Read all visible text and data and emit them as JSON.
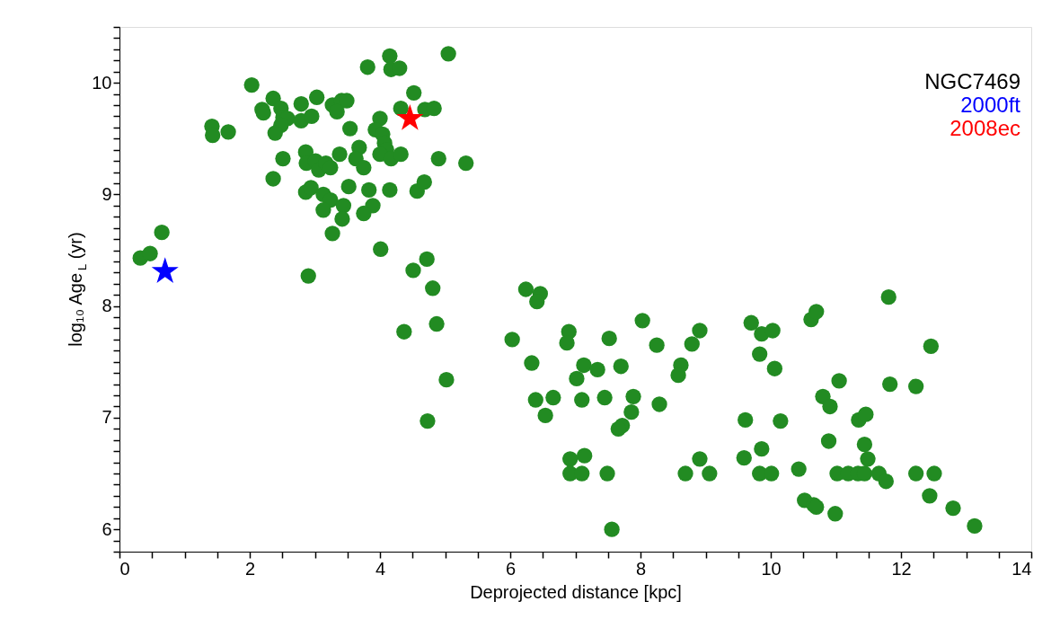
{
  "chart_data": {
    "type": "scatter",
    "xlabel": "Deprojected distance [kpc]",
    "ylabel": "log₁₀ Age$_{L}$ (yr)",
    "annotations": [
      "NGC7469"
    ],
    "xlim": [
      0,
      14
    ],
    "ylim": [
      5.8,
      10.5
    ],
    "xticks": [
      0,
      {
        "value": 0.5,
        "label": null
      },
      {
        "value": 1,
        "label": null
      },
      {
        "value": 1.5,
        "label": null
      },
      2,
      {
        "value": 2.5,
        "label": null
      },
      {
        "value": 3,
        "label": null
      },
      {
        "value": 3.5,
        "label": null
      },
      4,
      {
        "value": 4.5,
        "label": null
      },
      {
        "value": 5,
        "label": null
      },
      {
        "value": 5.5,
        "label": null
      },
      6,
      {
        "value": 6.5,
        "label": null
      },
      {
        "value": 7,
        "label": null
      },
      {
        "value": 7.5,
        "label": null
      },
      8,
      {
        "value": 8.5,
        "label": null
      },
      {
        "value": 9,
        "label": null
      },
      {
        "value": 9.5,
        "label": null
      },
      10,
      {
        "value": 10.5,
        "label": null
      },
      {
        "value": 11,
        "label": null
      },
      {
        "value": 11.5,
        "label": null
      },
      12,
      {
        "value": 12.5,
        "label": null
      },
      {
        "value": 13,
        "label": null
      },
      {
        "value": 13.5,
        "label": null
      },
      14
    ],
    "yticks": [
      {
        "value": 5.8,
        "label": null
      },
      {
        "value": 5.9,
        "label": null
      },
      6,
      {
        "value": 6.1,
        "label": null
      },
      {
        "value": 6.2,
        "label": null
      },
      {
        "value": 6.3,
        "label": null
      },
      {
        "value": 6.4,
        "label": null
      },
      {
        "value": 6.5,
        "label": null
      },
      {
        "value": 6.6,
        "label": null
      },
      {
        "value": 6.7,
        "label": null
      },
      {
        "value": 6.8,
        "label": null
      },
      {
        "value": 6.9,
        "label": null
      },
      7,
      {
        "value": 7.1,
        "label": null
      },
      {
        "value": 7.2,
        "label": null
      },
      {
        "value": 7.3,
        "label": null
      },
      {
        "value": 7.4,
        "label": null
      },
      {
        "value": 7.5,
        "label": null
      },
      {
        "value": 7.6,
        "label": null
      },
      {
        "value": 7.7,
        "label": null
      },
      {
        "value": 7.8,
        "label": null
      },
      {
        "value": 7.9,
        "label": null
      },
      8,
      {
        "value": 8.1,
        "label": null
      },
      {
        "value": 8.2,
        "label": null
      },
      {
        "value": 8.3,
        "label": null
      },
      {
        "value": 8.4,
        "label": null
      },
      {
        "value": 8.5,
        "label": null
      },
      {
        "value": 8.6,
        "label": null
      },
      {
        "value": 8.7,
        "label": null
      },
      {
        "value": 8.8,
        "label": null
      },
      {
        "value": 8.9,
        "label": null
      },
      9,
      {
        "value": 9.1,
        "label": null
      },
      {
        "value": 9.2,
        "label": null
      },
      {
        "value": 9.3,
        "label": null
      },
      {
        "value": 9.4,
        "label": null
      },
      {
        "value": 9.5,
        "label": null
      },
      {
        "value": 9.6,
        "label": null
      },
      {
        "value": 9.7,
        "label": null
      },
      {
        "value": 9.8,
        "label": null
      },
      {
        "value": 9.9,
        "label": null
      },
      10,
      {
        "value": 10.1,
        "label": null
      },
      {
        "value": 10.2,
        "label": null
      },
      {
        "value": 10.3,
        "label": null
      },
      {
        "value": 10.4,
        "label": null
      },
      {
        "value": 10.5,
        "label": null
      }
    ],
    "grid": false,
    "legend": false,
    "series": [
      {
        "color": "#228b22",
        "marker": "circle",
        "x": [
          0.32,
          0.47,
          0.65,
          1.42,
          1.43,
          1.67,
          2.03,
          2.36,
          2.19,
          2.21,
          2.48,
          2.51,
          2.58,
          2.48,
          2.39,
          2.79,
          2.79,
          2.95,
          3.03,
          3.27,
          3.41,
          3.49,
          3.34,
          3.54,
          3.81,
          4.15,
          4.17,
          4.3,
          5.05,
          4.52,
          4.32,
          4.69,
          4.83,
          4.0,
          3.93,
          4.04,
          4.07,
          4.1,
          4.0,
          4.17,
          4.32,
          4.9,
          5.32,
          2.51,
          2.36,
          2.86,
          2.87,
          3.01,
          3.06,
          3.17,
          3.24,
          3.38,
          3.68,
          3.63,
          3.75,
          2.86,
          2.94,
          3.13,
          3.24,
          3.13,
          3.44,
          3.42,
          3.27,
          3.52,
          3.83,
          4.15,
          3.89,
          3.75,
          4.57,
          4.68,
          4.01,
          4.72,
          4.51,
          2.9,
          4.81,
          4.87,
          4.37,
          5.02,
          4.73,
          6.24,
          6.46,
          6.41,
          6.03,
          6.9,
          6.87,
          6.33,
          7.52,
          8.03,
          8.25,
          8.91,
          8.79,
          8.62,
          8.58,
          7.13,
          7.34,
          7.02,
          7.7,
          6.39,
          6.66,
          6.54,
          7.1,
          7.45,
          7.89,
          7.86,
          7.72,
          7.66,
          8.29,
          9.61,
          10.15,
          6.92,
          7.14,
          6.92,
          7.1,
          7.49,
          7.56,
          8.69,
          8.91,
          9.06,
          9.59,
          9.86,
          9.83,
          10.01,
          10.43,
          10.52,
          9.7,
          9.86,
          10.03,
          9.83,
          10.06,
          10.62,
          10.7,
          11.81,
          12.46,
          11.05,
          11.83,
          12.23,
          10.8,
          10.91,
          11.35,
          11.46,
          10.89,
          11.44,
          11.49,
          11.02,
          11.19,
          11.34,
          11.44,
          11.66,
          11.77,
          12.23,
          12.51,
          12.44,
          12.8,
          13.13,
          10.66,
          10.7,
          10.99
        ],
        "values": [
          8.43,
          8.47,
          8.66,
          9.61,
          9.53,
          9.56,
          9.98,
          9.86,
          9.76,
          9.73,
          9.77,
          9.69,
          9.68,
          9.62,
          9.55,
          9.81,
          9.66,
          9.7,
          9.87,
          9.8,
          9.84,
          9.84,
          9.74,
          9.59,
          10.14,
          10.24,
          10.12,
          10.13,
          10.26,
          9.91,
          9.77,
          9.76,
          9.77,
          9.68,
          9.58,
          9.54,
          9.46,
          9.4,
          9.36,
          9.32,
          9.36,
          9.32,
          9.28,
          9.32,
          9.14,
          9.38,
          9.28,
          9.3,
          9.22,
          9.28,
          9.24,
          9.36,
          9.42,
          9.32,
          9.24,
          9.02,
          9.06,
          9.0,
          8.95,
          8.86,
          8.9,
          8.78,
          8.65,
          9.07,
          9.04,
          9.04,
          8.9,
          8.83,
          9.03,
          9.11,
          8.51,
          8.42,
          8.32,
          8.27,
          8.16,
          7.84,
          7.77,
          7.34,
          6.97,
          8.15,
          8.11,
          8.04,
          7.7,
          7.77,
          7.67,
          7.49,
          7.71,
          7.87,
          7.65,
          7.78,
          7.66,
          7.47,
          7.38,
          7.47,
          7.43,
          7.35,
          7.46,
          7.16,
          7.18,
          7.02,
          7.16,
          7.18,
          7.19,
          7.05,
          6.93,
          6.9,
          7.12,
          6.98,
          6.97,
          6.63,
          6.66,
          6.5,
          6.5,
          6.5,
          6.0,
          6.5,
          6.63,
          6.5,
          6.64,
          6.72,
          6.5,
          6.5,
          6.54,
          6.26,
          7.85,
          7.75,
          7.78,
          7.57,
          7.44,
          7.88,
          7.95,
          8.08,
          7.64,
          7.33,
          7.3,
          7.28,
          7.19,
          7.1,
          6.98,
          7.03,
          6.79,
          6.76,
          6.63,
          6.5,
          6.5,
          6.5,
          6.5,
          6.5,
          6.43,
          6.5,
          6.5,
          6.3,
          6.19,
          6.03,
          6.22,
          6.2,
          6.14
        ]
      },
      {
        "name": "2000ft",
        "color": "#0000ff",
        "marker": "star",
        "x": [
          0.7
        ],
        "values": [
          8.31
        ]
      },
      {
        "name": "2008ec",
        "color": "#ff0000",
        "marker": "star",
        "x": [
          4.46
        ],
        "values": [
          9.68
        ]
      }
    ]
  }
}
